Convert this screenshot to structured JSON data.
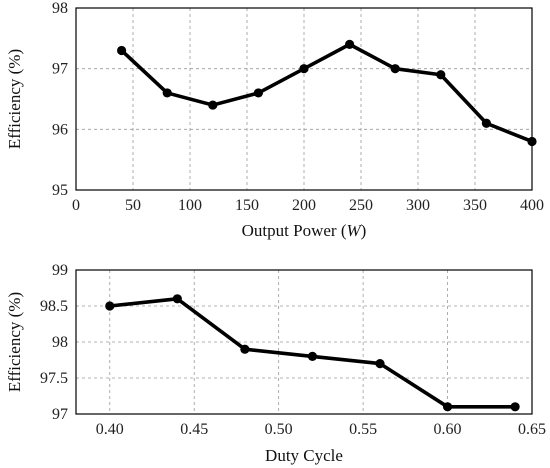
{
  "chart_data": [
    {
      "type": "line",
      "xlabel_text": "Output Power (",
      "xlabel_unit": "W",
      "xlabel_close": ")",
      "ylabel": "Efficiency (%)",
      "xlim": [
        0,
        400
      ],
      "ylim": [
        95,
        98
      ],
      "xticks": [
        0,
        50,
        100,
        150,
        200,
        250,
        300,
        350,
        400
      ],
      "xtick_labels": [
        "0",
        "50",
        "100",
        "150",
        "200",
        "250",
        "300",
        "350",
        "400"
      ],
      "yticks": [
        95,
        96,
        97,
        98
      ],
      "ytick_labels": [
        "95",
        "96",
        "97",
        "98"
      ],
      "grid": true,
      "line_color": "#000000",
      "x": [
        40,
        80,
        120,
        160,
        200,
        240,
        280,
        320,
        360,
        400
      ],
      "y": [
        97.3,
        96.6,
        96.4,
        96.6,
        97.0,
        97.4,
        97.0,
        96.9,
        96.1,
        95.8
      ]
    },
    {
      "type": "line",
      "xlabel": "Duty Cycle",
      "ylabel": "Efficiency (%)",
      "xlim": [
        0.38,
        0.65
      ],
      "ylim": [
        97,
        99
      ],
      "xticks": [
        0.4,
        0.45,
        0.5,
        0.55,
        0.6,
        0.65
      ],
      "xtick_labels": [
        "0.40",
        "0.45",
        "0.50",
        "0.55",
        "0.60",
        "0.65"
      ],
      "yticks": [
        97,
        97.5,
        98,
        98.5,
        99
      ],
      "ytick_labels": [
        "97",
        "97.5",
        "98",
        "98.5",
        "99"
      ],
      "grid": true,
      "line_color": "#000000",
      "x": [
        0.4,
        0.44,
        0.48,
        0.52,
        0.56,
        0.6,
        0.64
      ],
      "y": [
        98.5,
        98.6,
        97.9,
        97.8,
        97.7,
        97.1,
        97.1
      ]
    }
  ]
}
